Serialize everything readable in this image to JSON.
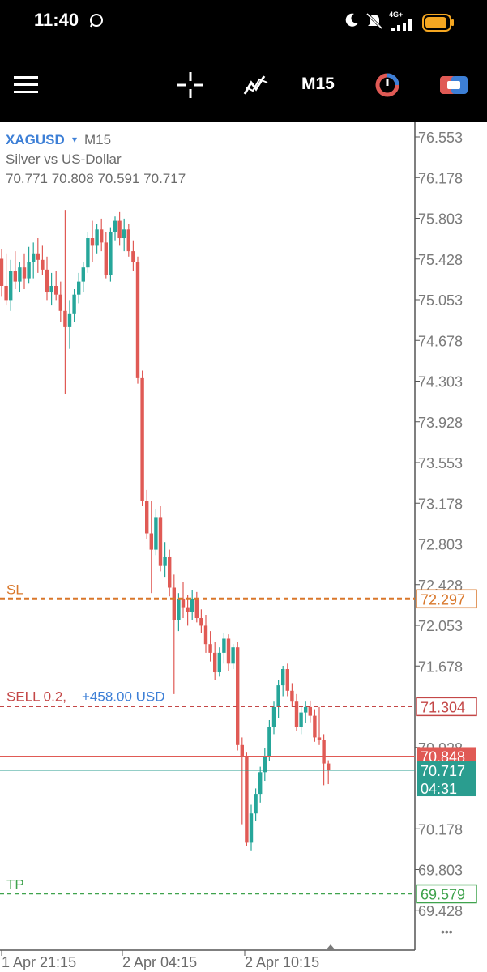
{
  "status_bar": {
    "time": "11:40",
    "network": "4G+",
    "icons": [
      "whatsapp-icon",
      "moon-icon",
      "muted-bell-icon",
      "signal-icon",
      "battery-icon"
    ]
  },
  "toolbar": {
    "timeframe": "M15",
    "icons": [
      "menu-icon",
      "crosshair-icon",
      "indicators-icon",
      "timeframe",
      "clock-icon",
      "trade-icon"
    ]
  },
  "chart_info": {
    "symbol": "XAGUSD",
    "dropdown_glyph": "▾",
    "timeframe": "M15",
    "description": "Silver vs US-Dollar",
    "ohlc": "70.771 70.808 70.591 70.717"
  },
  "price_axis": {
    "labels": [
      "76.553",
      "76.178",
      "75.803",
      "75.428",
      "75.053",
      "74.678",
      "74.303",
      "73.928",
      "73.553",
      "73.178",
      "72.803",
      "72.428",
      "72.053",
      "71.678",
      "70.928",
      "70.178",
      "69.803",
      "69.428"
    ]
  },
  "time_axis": {
    "labels": [
      "1 Apr 21:15",
      "2 Apr 04:15",
      "2 Apr 10:15"
    ]
  },
  "levels": {
    "sl": {
      "label": "SL",
      "price": 72.297,
      "price_text": "72.297",
      "color": "#d9772a"
    },
    "sell": {
      "label": "SELL 0.2,",
      "profit": "+458.00 USD",
      "price": 71.304,
      "price_text": "71.304",
      "color": "#c44747",
      "profit_color": "#3d7fd6"
    },
    "tp": {
      "label": "TP",
      "price": 69.579,
      "price_text": "69.579",
      "color": "#3fa34d"
    },
    "ask": {
      "price": 70.848,
      "price_text": "70.848",
      "color": "#e05a55"
    },
    "bid": {
      "price": 70.717,
      "price_text": "70.717",
      "countdown": "04:31",
      "color": "#2a9d8f"
    }
  },
  "colors": {
    "bull": "#26a69a",
    "bear": "#e05a55",
    "axis_text": "#7a7a7a"
  },
  "more_glyph": "•••",
  "chart_data": {
    "type": "candlestick",
    "symbol": "XAGUSD",
    "interval": "M15",
    "ylim": [
      69.3,
      76.7
    ],
    "x_ticks": [
      "1 Apr 21:15",
      "2 Apr 04:15",
      "2 Apr 10:15"
    ],
    "candles": [
      {
        "o": 75.43,
        "h": 75.52,
        "l": 75.08,
        "c": 75.18
      },
      {
        "o": 75.18,
        "h": 75.48,
        "l": 75.0,
        "c": 75.05
      },
      {
        "o": 75.05,
        "h": 75.42,
        "l": 74.95,
        "c": 75.32
      },
      {
        "o": 75.32,
        "h": 75.5,
        "l": 75.15,
        "c": 75.22
      },
      {
        "o": 75.22,
        "h": 75.4,
        "l": 75.12,
        "c": 75.35
      },
      {
        "o": 75.35,
        "h": 75.48,
        "l": 75.15,
        "c": 75.25
      },
      {
        "o": 75.25,
        "h": 75.54,
        "l": 75.2,
        "c": 75.4
      },
      {
        "o": 75.4,
        "h": 75.58,
        "l": 75.25,
        "c": 75.48
      },
      {
        "o": 75.48,
        "h": 75.62,
        "l": 75.3,
        "c": 75.42
      },
      {
        "o": 75.42,
        "h": 75.55,
        "l": 75.28,
        "c": 75.33
      },
      {
        "o": 75.33,
        "h": 75.45,
        "l": 75.05,
        "c": 75.12
      },
      {
        "o": 75.12,
        "h": 75.3,
        "l": 75.0,
        "c": 75.18
      },
      {
        "o": 75.18,
        "h": 75.32,
        "l": 75.05,
        "c": 75.1
      },
      {
        "o": 75.1,
        "h": 75.22,
        "l": 74.85,
        "c": 74.95
      },
      {
        "o": 74.95,
        "h": 75.88,
        "l": 74.18,
        "c": 74.8
      },
      {
        "o": 74.8,
        "h": 75.05,
        "l": 74.6,
        "c": 74.92
      },
      {
        "o": 74.92,
        "h": 75.15,
        "l": 74.85,
        "c": 75.1
      },
      {
        "o": 75.1,
        "h": 75.3,
        "l": 75.02,
        "c": 75.22
      },
      {
        "o": 75.22,
        "h": 75.4,
        "l": 75.12,
        "c": 75.35
      },
      {
        "o": 75.35,
        "h": 75.68,
        "l": 75.3,
        "c": 75.62
      },
      {
        "o": 75.62,
        "h": 75.78,
        "l": 75.4,
        "c": 75.55
      },
      {
        "o": 75.55,
        "h": 75.75,
        "l": 75.48,
        "c": 75.7
      },
      {
        "o": 75.7,
        "h": 75.8,
        "l": 75.5,
        "c": 75.58
      },
      {
        "o": 75.58,
        "h": 75.68,
        "l": 75.25,
        "c": 75.28
      },
      {
        "o": 75.28,
        "h": 75.72,
        "l": 75.22,
        "c": 75.68
      },
      {
        "o": 75.68,
        "h": 75.82,
        "l": 75.6,
        "c": 75.78
      },
      {
        "o": 75.78,
        "h": 75.86,
        "l": 75.55,
        "c": 75.62
      },
      {
        "o": 75.62,
        "h": 75.8,
        "l": 75.5,
        "c": 75.7
      },
      {
        "o": 75.7,
        "h": 75.75,
        "l": 75.45,
        "c": 75.5
      },
      {
        "o": 75.5,
        "h": 75.6,
        "l": 75.32,
        "c": 75.4
      },
      {
        "o": 75.4,
        "h": 75.45,
        "l": 74.28,
        "c": 74.33
      },
      {
        "o": 74.33,
        "h": 74.4,
        "l": 73.15,
        "c": 73.2
      },
      {
        "o": 73.2,
        "h": 73.3,
        "l": 72.85,
        "c": 72.9
      },
      {
        "o": 72.9,
        "h": 73.2,
        "l": 72.35,
        "c": 72.75
      },
      {
        "o": 72.75,
        "h": 73.12,
        "l": 72.7,
        "c": 73.05
      },
      {
        "o": 73.05,
        "h": 73.15,
        "l": 72.55,
        "c": 72.6
      },
      {
        "o": 72.6,
        "h": 72.82,
        "l": 72.5,
        "c": 72.68
      },
      {
        "o": 72.68,
        "h": 72.75,
        "l": 72.32,
        "c": 72.4
      },
      {
        "o": 72.4,
        "h": 72.52,
        "l": 71.42,
        "c": 72.1
      },
      {
        "o": 72.1,
        "h": 72.35,
        "l": 72.0,
        "c": 72.3
      },
      {
        "o": 72.3,
        "h": 72.45,
        "l": 72.12,
        "c": 72.22
      },
      {
        "o": 72.22,
        "h": 72.33,
        "l": 72.05,
        "c": 72.18
      },
      {
        "o": 72.18,
        "h": 72.38,
        "l": 72.1,
        "c": 72.3
      },
      {
        "o": 72.3,
        "h": 72.36,
        "l": 72.08,
        "c": 72.12
      },
      {
        "o": 72.12,
        "h": 72.2,
        "l": 71.98,
        "c": 72.05
      },
      {
        "o": 72.05,
        "h": 72.15,
        "l": 71.8,
        "c": 71.88
      },
      {
        "o": 71.88,
        "h": 72.0,
        "l": 71.72,
        "c": 71.8
      },
      {
        "o": 71.8,
        "h": 71.9,
        "l": 71.55,
        "c": 71.62
      },
      {
        "o": 71.62,
        "h": 71.85,
        "l": 71.58,
        "c": 71.8
      },
      {
        "o": 71.8,
        "h": 71.98,
        "l": 71.7,
        "c": 71.93
      },
      {
        "o": 71.93,
        "h": 71.97,
        "l": 71.63,
        "c": 71.7
      },
      {
        "o": 71.7,
        "h": 71.88,
        "l": 71.65,
        "c": 71.85
      },
      {
        "o": 71.85,
        "h": 71.9,
        "l": 70.9,
        "c": 70.95
      },
      {
        "o": 70.95,
        "h": 71.02,
        "l": 70.22,
        "c": 70.85
      },
      {
        "o": 70.85,
        "h": 70.88,
        "l": 70.02,
        "c": 70.05
      },
      {
        "o": 70.05,
        "h": 70.4,
        "l": 69.98,
        "c": 70.32
      },
      {
        "o": 70.32,
        "h": 70.55,
        "l": 70.25,
        "c": 70.5
      },
      {
        "o": 70.5,
        "h": 70.75,
        "l": 70.42,
        "c": 70.7
      },
      {
        "o": 70.7,
        "h": 70.92,
        "l": 70.62,
        "c": 70.85
      },
      {
        "o": 70.85,
        "h": 71.18,
        "l": 70.8,
        "c": 71.12
      },
      {
        "o": 71.12,
        "h": 71.35,
        "l": 71.05,
        "c": 71.3
      },
      {
        "o": 71.3,
        "h": 71.55,
        "l": 71.2,
        "c": 71.5
      },
      {
        "o": 71.5,
        "h": 71.68,
        "l": 71.4,
        "c": 71.65
      },
      {
        "o": 71.65,
        "h": 71.7,
        "l": 71.4,
        "c": 71.45
      },
      {
        "o": 71.45,
        "h": 71.52,
        "l": 71.3,
        "c": 71.35
      },
      {
        "o": 71.35,
        "h": 71.42,
        "l": 71.08,
        "c": 71.12
      },
      {
        "o": 71.12,
        "h": 71.3,
        "l": 71.05,
        "c": 71.25
      },
      {
        "o": 71.25,
        "h": 71.35,
        "l": 71.15,
        "c": 71.3
      },
      {
        "o": 71.3,
        "h": 71.36,
        "l": 71.16,
        "c": 71.22
      },
      {
        "o": 71.22,
        "h": 71.28,
        "l": 70.98,
        "c": 71.02
      },
      {
        "o": 71.02,
        "h": 71.3,
        "l": 70.95,
        "c": 71.0
      },
      {
        "o": 71.0,
        "h": 71.05,
        "l": 70.58,
        "c": 70.78
      },
      {
        "o": 70.78,
        "h": 70.81,
        "l": 70.59,
        "c": 70.72
      }
    ]
  }
}
